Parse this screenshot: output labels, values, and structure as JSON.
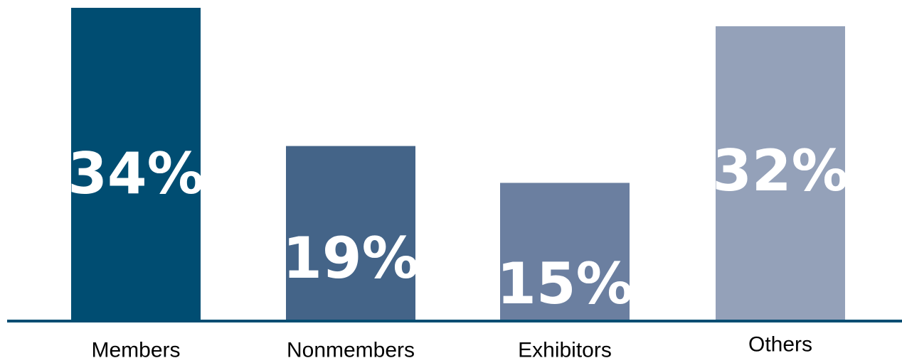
{
  "chart_data": {
    "type": "bar",
    "categories": [
      "Members",
      "Nonmembers",
      "Exhibitors",
      "Others"
    ],
    "values": [
      34,
      19,
      15,
      32
    ],
    "value_labels": [
      "34%",
      "19%",
      "15%",
      "32%"
    ],
    "unit": "%",
    "ylim": [
      0,
      34
    ],
    "grid": false,
    "legend": "none",
    "colors": [
      "#004d72",
      "#446488",
      "#6b7fa0",
      "#94a1b9"
    ],
    "baseline_color": "#004d72"
  }
}
